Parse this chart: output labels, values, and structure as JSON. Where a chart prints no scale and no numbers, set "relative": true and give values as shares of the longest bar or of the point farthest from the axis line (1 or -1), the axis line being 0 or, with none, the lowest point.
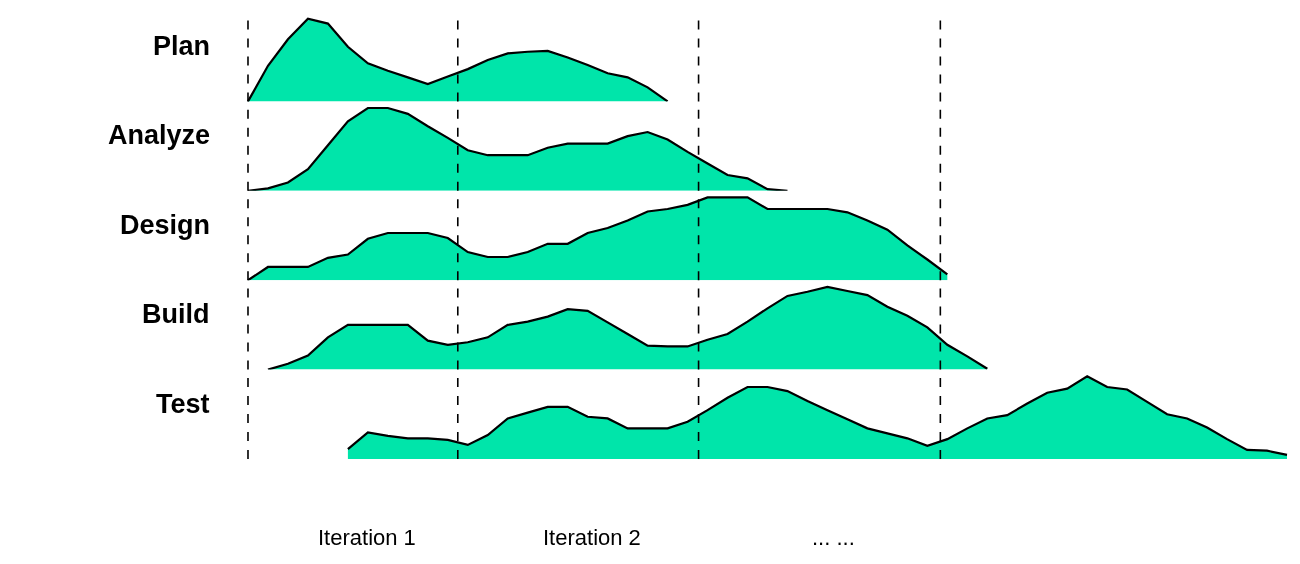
{
  "chart_data": [
    {
      "type": "area",
      "relative": true,
      "ylabel": "Plan",
      "tick_labels": false,
      "categories": [
        null,
        null,
        null,
        null,
        null,
        null,
        null,
        null,
        null,
        null,
        null,
        null,
        null,
        null,
        null,
        null,
        null,
        null,
        null,
        null,
        null,
        null,
        null,
        null,
        null,
        null,
        null,
        null,
        null,
        null,
        null,
        null,
        null,
        null,
        null,
        null,
        null,
        null,
        null,
        null,
        null,
        null,
        null,
        null,
        null,
        null,
        null,
        null,
        null,
        null,
        null,
        null,
        null
      ],
      "series": [
        {
          "color": "#00e5aa",
          "values": [
            0,
            0.43,
            0.75,
            1,
            0.94,
            0.66,
            0.46,
            0.37,
            0.29,
            0.21,
            0.3,
            0.39,
            0.5,
            0.58,
            0.6,
            0.61,
            0.53,
            0.44,
            0.34,
            0.29,
            0.17,
            0,
            null,
            null,
            null,
            null,
            null,
            null,
            null,
            null,
            null,
            null,
            null,
            null,
            null,
            null,
            null,
            null,
            null,
            null,
            null,
            null,
            null,
            null,
            null,
            null,
            null,
            null,
            null,
            null,
            null,
            null,
            null
          ]
        }
      ]
    },
    {
      "type": "area",
      "relative": true,
      "ylabel": "Analyze",
      "tick_labels": false,
      "categories": [
        null,
        null,
        null,
        null,
        null,
        null,
        null,
        null,
        null,
        null,
        null,
        null,
        null,
        null,
        null,
        null,
        null,
        null,
        null,
        null,
        null,
        null,
        null,
        null,
        null,
        null,
        null,
        null,
        null,
        null,
        null,
        null,
        null,
        null,
        null,
        null,
        null,
        null,
        null,
        null,
        null,
        null,
        null,
        null,
        null,
        null,
        null,
        null,
        null,
        null,
        null,
        null,
        null
      ],
      "series": [
        {
          "color": "#00e5aa",
          "values": [
            0,
            0.03,
            0.1,
            0.26,
            0.55,
            0.84,
            1,
            1,
            0.93,
            0.78,
            0.64,
            0.49,
            0.43,
            0.43,
            0.43,
            0.52,
            0.57,
            0.57,
            0.57,
            0.66,
            0.71,
            0.62,
            0.47,
            0.33,
            0.19,
            0.15,
            0.02,
            0,
            null,
            null,
            null,
            null,
            null,
            null,
            null,
            null,
            null,
            null,
            null,
            null,
            null,
            null,
            null,
            null,
            null,
            null,
            null,
            null,
            null,
            null,
            null,
            null,
            null
          ]
        }
      ]
    },
    {
      "type": "area",
      "relative": true,
      "ylabel": "Design",
      "tick_labels": false,
      "categories": [
        null,
        null,
        null,
        null,
        null,
        null,
        null,
        null,
        null,
        null,
        null,
        null,
        null,
        null,
        null,
        null,
        null,
        null,
        null,
        null,
        null,
        null,
        null,
        null,
        null,
        null,
        null,
        null,
        null,
        null,
        null,
        null,
        null,
        null,
        null,
        null,
        null,
        null,
        null,
        null,
        null,
        null,
        null,
        null,
        null,
        null,
        null,
        null,
        null,
        null,
        null,
        null,
        null
      ],
      "series": [
        {
          "color": "#00e5aa",
          "values": [
            0,
            0.16,
            0.16,
            0.16,
            0.27,
            0.31,
            0.5,
            0.57,
            0.57,
            0.57,
            0.51,
            0.34,
            0.28,
            0.28,
            0.34,
            0.44,
            0.44,
            0.57,
            0.63,
            0.72,
            0.83,
            0.86,
            0.91,
            1,
            1,
            1,
            0.86,
            0.86,
            0.86,
            0.86,
            0.82,
            0.72,
            0.61,
            0.42,
            0.25,
            0.07,
            null,
            null,
            null,
            null,
            null,
            null,
            null,
            null,
            null,
            null,
            null,
            null,
            null,
            null,
            null,
            null,
            null
          ]
        }
      ]
    },
    {
      "type": "area",
      "relative": true,
      "ylabel": "Build",
      "tick_labels": false,
      "categories": [
        null,
        null,
        null,
        null,
        null,
        null,
        null,
        null,
        null,
        null,
        null,
        null,
        null,
        null,
        null,
        null,
        null,
        null,
        null,
        null,
        null,
        null,
        null,
        null,
        null,
        null,
        null,
        null,
        null,
        null,
        null,
        null,
        null,
        null,
        null,
        null,
        null,
        null,
        null,
        null,
        null,
        null,
        null,
        null,
        null,
        null,
        null,
        null,
        null,
        null,
        null,
        null,
        null
      ],
      "series": [
        {
          "color": "#00e5aa",
          "values": [
            null,
            0,
            0.07,
            0.17,
            0.39,
            0.54,
            0.54,
            0.54,
            0.54,
            0.35,
            0.3,
            0.33,
            0.39,
            0.54,
            0.58,
            0.64,
            0.73,
            0.71,
            0.57,
            0.43,
            0.29,
            0.28,
            0.28,
            0.36,
            0.43,
            0.58,
            0.74,
            0.89,
            0.94,
            1,
            0.95,
            0.9,
            0.76,
            0.65,
            0.51,
            0.3,
            0.16,
            0.01,
            null,
            null,
            null,
            null,
            null,
            null,
            null,
            null,
            null,
            null,
            null,
            null,
            null,
            null,
            null
          ]
        }
      ]
    },
    {
      "type": "area",
      "relative": true,
      "ylabel": "Test",
      "tick_labels": false,
      "categories": [
        null,
        null,
        null,
        null,
        null,
        null,
        null,
        null,
        null,
        null,
        null,
        null,
        null,
        null,
        null,
        null,
        null,
        null,
        null,
        null,
        null,
        null,
        null,
        null,
        null,
        null,
        null,
        null,
        null,
        null,
        null,
        null,
        null,
        null,
        null,
        null,
        null,
        null,
        null,
        null,
        null,
        null,
        null,
        null,
        null,
        null,
        null,
        null,
        null,
        null,
        null,
        null,
        null
      ],
      "series": [
        {
          "color": "#00e5aa",
          "values": [
            null,
            null,
            null,
            null,
            null,
            0.12,
            0.32,
            0.28,
            0.25,
            0.25,
            0.23,
            0.17,
            0.29,
            0.49,
            0.56,
            0.63,
            0.63,
            0.51,
            0.49,
            0.37,
            0.37,
            0.37,
            0.45,
            0.59,
            0.74,
            0.87,
            0.87,
            0.82,
            0.7,
            0.59,
            0.48,
            0.37,
            0.31,
            0.25,
            0.16,
            0.24,
            0.37,
            0.49,
            0.53,
            0.67,
            0.8,
            0.85,
            1,
            0.87,
            0.84,
            0.69,
            0.54,
            0.49,
            0.38,
            0.24,
            0.11,
            0.1,
            0.05
          ]
        }
      ],
      "annotations": [
        "Iteration 1",
        "Iteration 2",
        "... ..."
      ]
    }
  ]
}
